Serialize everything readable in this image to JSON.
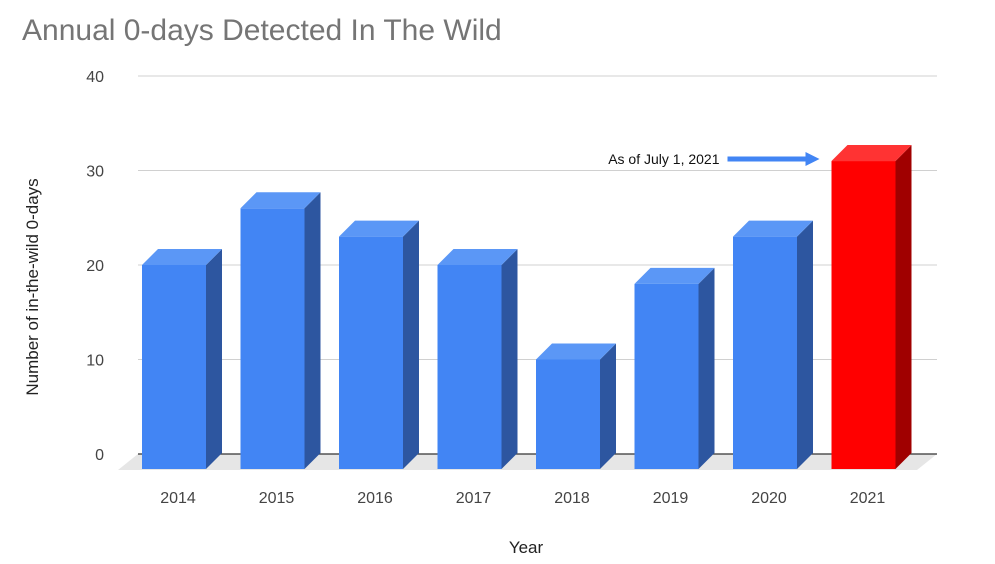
{
  "chart_data": {
    "type": "bar",
    "title": "Annual 0-days Detected In The Wild",
    "xlabel": "Year",
    "ylabel": "Number of in-the-wild 0-days",
    "categories": [
      "2014",
      "2015",
      "2016",
      "2017",
      "2018",
      "2019",
      "2020",
      "2021"
    ],
    "values": [
      20,
      26,
      23,
      20,
      10,
      18,
      23,
      31
    ],
    "ylim": [
      0,
      40
    ],
    "yticks": [
      0,
      10,
      20,
      30,
      40
    ],
    "grid": true,
    "style": "3d",
    "colors": {
      "bar_front": "#4285f4",
      "bar_top": "#5b97f6",
      "bar_side": "#2d56a0",
      "highlight_front": "#ff0000",
      "highlight_top": "#ff3333",
      "highlight_side": "#a00000",
      "floor": "#e6e6e6",
      "gridline": "#d0d0d0",
      "arrow": "#4285f4"
    },
    "highlight_index": 7,
    "annotation": {
      "text": "As of July 1, 2021",
      "target_category": "2021"
    }
  }
}
